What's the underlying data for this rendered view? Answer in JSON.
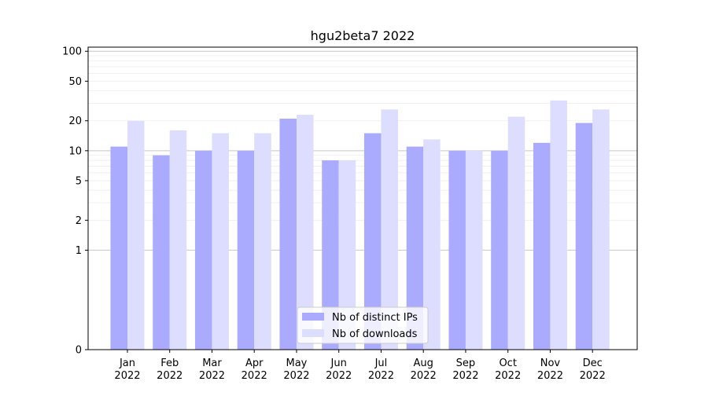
{
  "chart_data": {
    "type": "bar",
    "title": "hgu2beta7 2022",
    "xlabel": "",
    "ylabel": "",
    "y_scale": "symlog",
    "ylim": [
      0,
      110
    ],
    "y_ticks": [
      0,
      1,
      2,
      5,
      10,
      20,
      50,
      100
    ],
    "y_tick_labels": [
      "0",
      "1",
      "2",
      "5",
      "10",
      "20",
      "50",
      "100"
    ],
    "grid": true,
    "legend_position": "bottom-center",
    "categories": [
      "Jan",
      "Feb",
      "Mar",
      "Apr",
      "May",
      "Jun",
      "Jul",
      "Aug",
      "Sep",
      "Oct",
      "Nov",
      "Dec"
    ],
    "category_sublabel": "2022",
    "series": [
      {
        "name": "Nb of distinct IPs",
        "color": "#aaaaff",
        "values": [
          11,
          9,
          10,
          10,
          21,
          8,
          15,
          11,
          10,
          10,
          12,
          19
        ]
      },
      {
        "name": "Nb of downloads",
        "color": "#ddddff",
        "values": [
          20,
          16,
          15,
          15,
          23,
          8,
          26,
          13,
          10,
          22,
          32,
          26
        ]
      }
    ]
  }
}
